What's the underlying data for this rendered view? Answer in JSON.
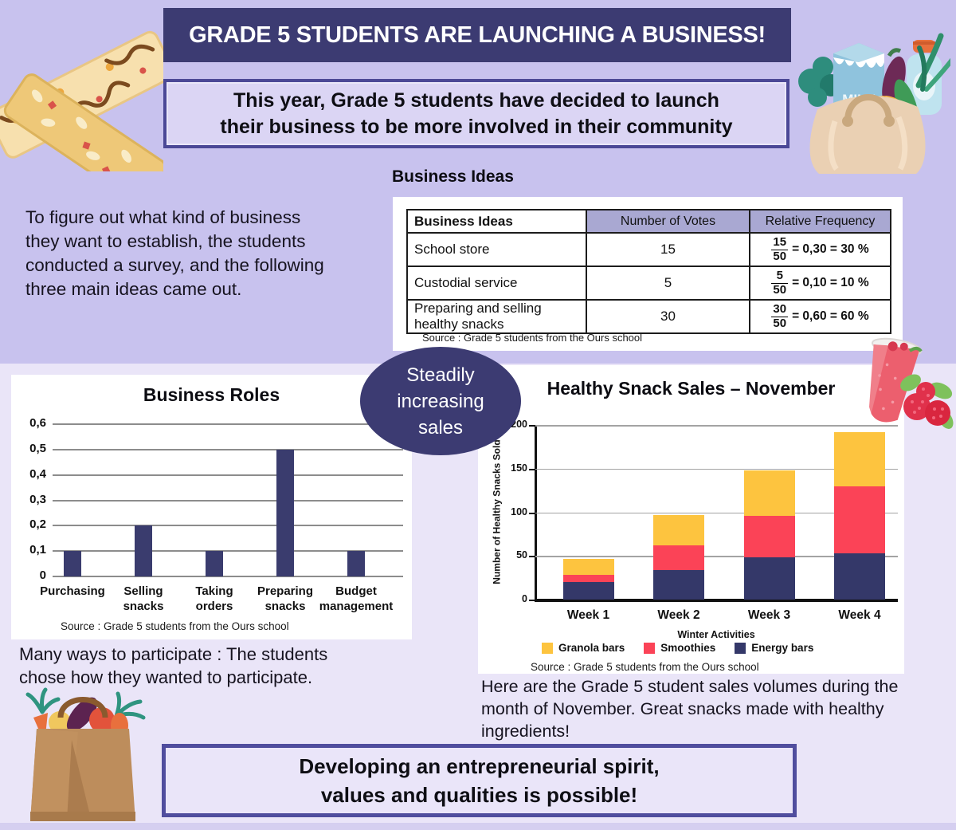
{
  "title_banner": {
    "text": "GRADE 5 STUDENTS ARE LAUNCHING A BUSINESS!"
  },
  "subtitle": {
    "lines": [
      "This year, Grade 5 students have decided to launch",
      "their business to be more involved in their community"
    ]
  },
  "intro": {
    "lines": [
      "To figure out what kind of business",
      "they want to establish, the students",
      "conducted a survey, and the following",
      "three main ideas came out."
    ]
  },
  "business_ideas": {
    "heading": "Business Ideas",
    "table": {
      "columns": [
        "Business Ideas",
        "Number of Votes",
        "Relative Frequency"
      ],
      "rows": [
        {
          "idea": "School store",
          "votes": "15",
          "frac_num": "15",
          "frac_den": "50",
          "frac_rest": "= 0,30 = 30 %"
        },
        {
          "idea": "Custodial service",
          "votes": "5",
          "frac_num": "5",
          "frac_den": "50",
          "frac_rest": "= 0,10 = 10 %"
        },
        {
          "idea": "Preparing and selling healthy snacks",
          "votes": "30",
          "frac_num": "30",
          "frac_den": "50",
          "frac_rest": "= 0,60 = 60 %"
        }
      ],
      "source": "Source : Grade 5 students from the Ours school"
    }
  },
  "badge": {
    "lines": [
      "Steadily",
      "increasing",
      "sales"
    ]
  },
  "participate": {
    "lines": [
      "Many ways to participate : The students",
      "chose how they wanted to participate."
    ]
  },
  "sales_note": {
    "lines": [
      "Here are the Grade 5 student sales volumes during the",
      "month of November. Great snacks made with healthy",
      "ingredients!"
    ]
  },
  "footer": {
    "lines": [
      "Developing an entrepreneurial spirit,",
      "values and qualities is possible!"
    ]
  },
  "decorations": {
    "milk_label": "MILK",
    "items": [
      "granola-bars-illustration",
      "grocery-tote-illustration",
      "smoothie-raspberries-illustration",
      "vegetable-bag-illustration"
    ]
  },
  "colors": {
    "top_band": "#c8c2ee",
    "page_bg": "#eae5f8",
    "navy": "#3c3b72",
    "box_border": "#4b4896",
    "table_header": "#a9a8d2",
    "roles_bar": "#3a3c6e",
    "granola_yellow": "#fdc43f",
    "smoothie_red": "#fb4357",
    "energy_navy": "#343869"
  },
  "chart_data": [
    {
      "type": "bar",
      "title": "Business Roles",
      "categories": [
        "Purchasing",
        "Selling\nsnacks",
        "Taking\norders",
        "Preparing\nsnacks",
        "Budget\nmanagement"
      ],
      "values": [
        0.1,
        0.2,
        0.1,
        0.5,
        0.1
      ],
      "xlabel": "",
      "ylabel": "",
      "ylim": [
        0,
        0.6
      ],
      "ytick_step": 0.1,
      "ytick_labels": [
        "0",
        "0,1",
        "0,2",
        "0,3",
        "0,4",
        "0,5",
        "0,6"
      ],
      "bar_color": "#3a3c6e",
      "grid": true,
      "legend": "none",
      "source": "Source : Grade 5 students from the Ours school"
    },
    {
      "type": "bar",
      "stacked": true,
      "title": "Healthy Snack Sales – November",
      "categories": [
        "Week 1",
        "Week 2",
        "Week 3",
        "Week 4"
      ],
      "series": [
        {
          "name": "Energy bars",
          "color": "#343869",
          "values": [
            20,
            34,
            48,
            53
          ]
        },
        {
          "name": "Smoothies",
          "color": "#fb4357",
          "values": [
            8,
            28,
            48,
            77
          ]
        },
        {
          "name": "Granola bars",
          "color": "#fdc43f",
          "values": [
            19,
            35,
            52,
            62
          ]
        }
      ],
      "totals": [
        47,
        97,
        148,
        192
      ],
      "legend_order": [
        "Granola bars",
        "Smoothies",
        "Energy bars"
      ],
      "legend_position": "bottom",
      "xlabel": "Winter Activities",
      "ylabel": "Number of Healthy Snacks Sold",
      "ylim": [
        0,
        200
      ],
      "ytick_step": 50,
      "ytick_labels": [
        "0",
        "50",
        "100",
        "150",
        "200"
      ],
      "grid": true,
      "source": "Source : Grade 5 students from the Ours school"
    }
  ]
}
